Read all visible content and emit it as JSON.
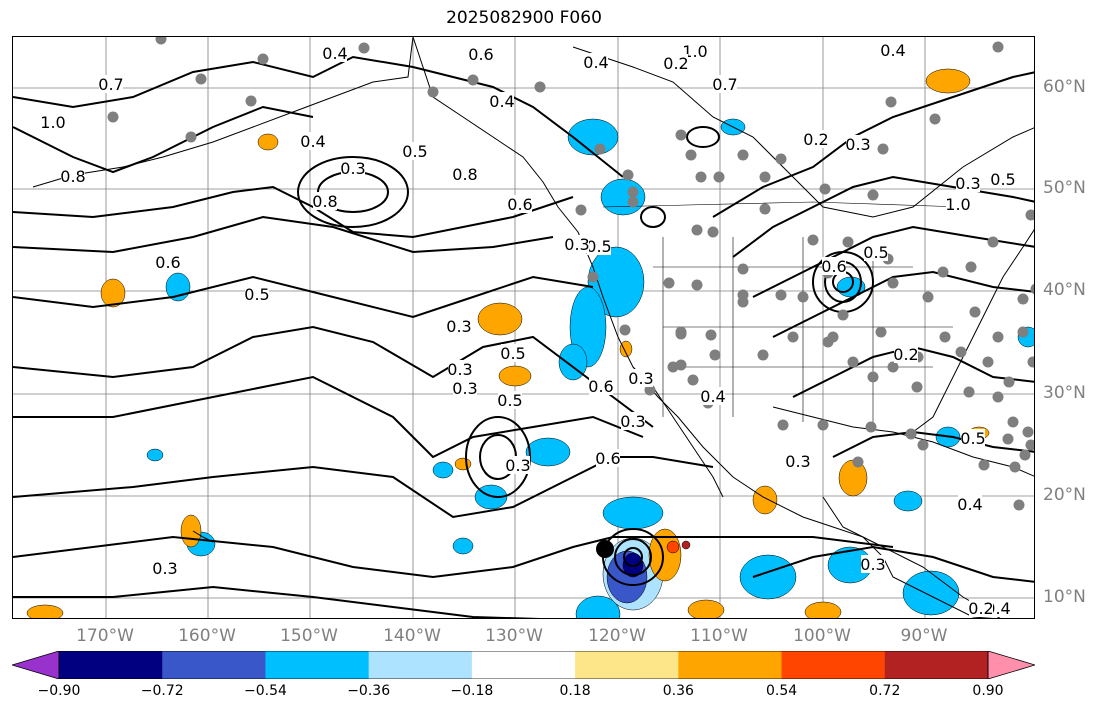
{
  "title": "2025082900 F060",
  "map": {
    "type": "contour-map",
    "projection": "cylindrical",
    "lon_range": [
      180,
      81
    ],
    "lat_range": [
      8,
      65
    ],
    "lon_labels": [
      "170°W",
      "160°W",
      "150°W",
      "140°W",
      "130°W",
      "120°W",
      "110°W",
      "100°W",
      "90°W"
    ],
    "lat_labels": [
      "60°N",
      "50°N",
      "40°N",
      "30°N",
      "20°N",
      "10°N"
    ],
    "gridlines": true,
    "contour_labels": [
      "1.0",
      "0.8",
      "0.7",
      "0.4",
      "0.6",
      "0.5",
      "0.3",
      "0.8",
      "0.5",
      "0.3",
      "0.4",
      "0.8",
      "0.6",
      "0.4",
      "0.5",
      "1.0",
      "0.7",
      "0.6",
      "0.5",
      "0.3",
      "0.6",
      "0.5",
      "0.3",
      "0.6",
      "0.3",
      "0.4",
      "0.3",
      "0.5",
      "0.3",
      "0.6",
      "0.5",
      "0.3",
      "0.3",
      "0.3",
      "0.4",
      "0.2",
      "0.3",
      "0.4",
      "0.5",
      "0.3",
      "1.0",
      "0.2",
      "0.4",
      "0.2",
      "0.3",
      "0.4",
      "0.2"
    ],
    "colors": {
      "land_outline": "#000000",
      "grid": "#808080",
      "station": "#7f7f7f",
      "contour": "#000000"
    }
  },
  "colorbar": {
    "ticks": [
      "−0.90",
      "−0.72",
      "−0.54",
      "−0.36",
      "−0.18",
      "0.18",
      "0.36",
      "0.54",
      "0.72",
      "0.90"
    ],
    "colors": [
      "#9932cc",
      "#000080",
      "#3a57c9",
      "#00bfff",
      "#aee3ff",
      "#ffffff",
      "#fde68a",
      "#ffa500",
      "#ff4500",
      "#b22222",
      "#ff8fab"
    ]
  }
}
